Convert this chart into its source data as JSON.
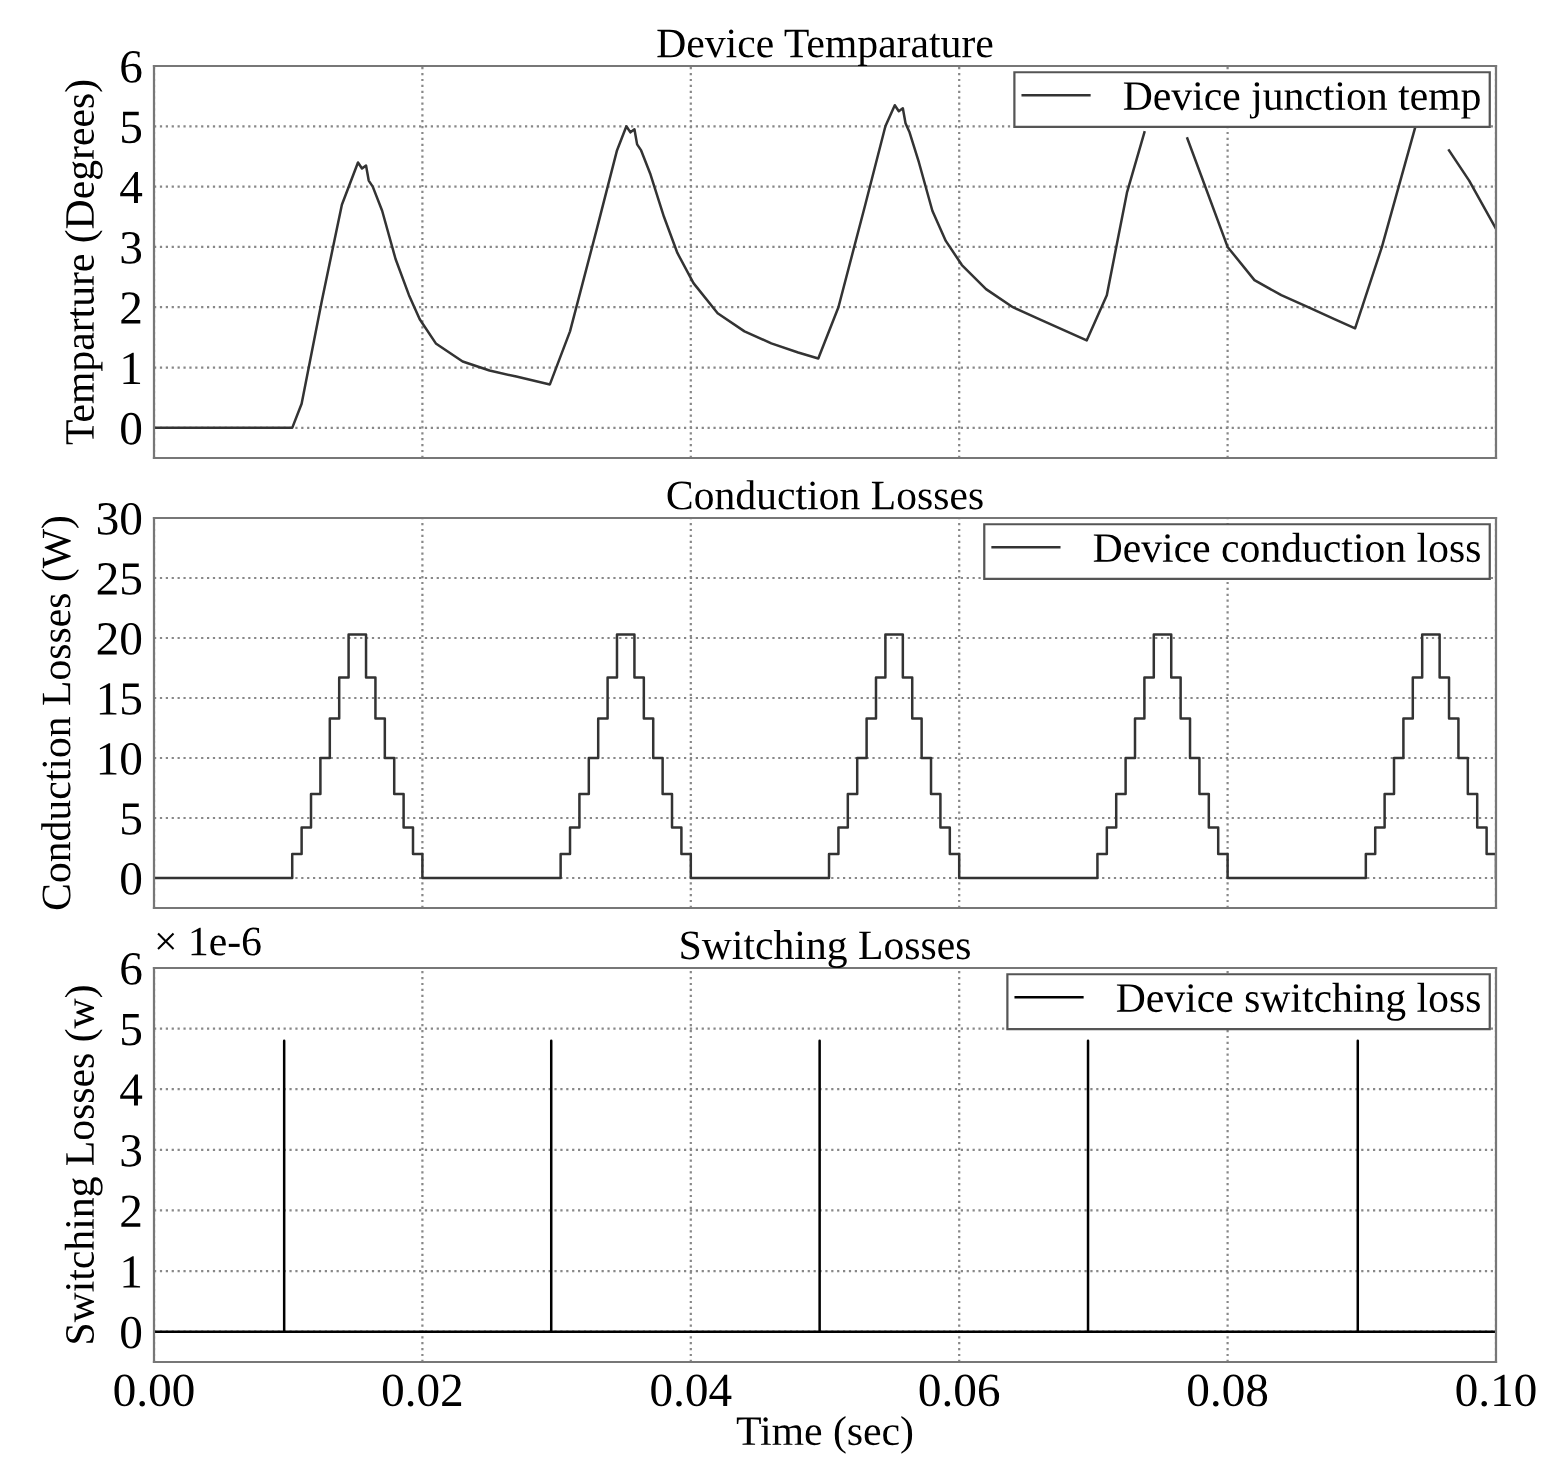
{
  "chart_data": [
    {
      "type": "line",
      "title": "Device Temparature",
      "ylabel": "Temparture (Degrees)",
      "xlim": [
        0,
        0.1
      ],
      "xticks": [
        0,
        0.02,
        0.04,
        0.06,
        0.08,
        0.1
      ],
      "ylim": [
        -0.5,
        6
      ],
      "yticks": [
        0,
        1,
        2,
        3,
        4,
        5,
        6
      ],
      "grid": true,
      "legend": "top right",
      "tick_labels": "y",
      "series": [
        {
          "name": "Device junction temp",
          "color": "#333333",
          "x": [
            0,
            0.0103,
            0.011,
            0.0125,
            0.014,
            0.0152,
            0.0155,
            0.0158,
            0.016,
            0.0163,
            0.017,
            0.018,
            0.019,
            0.0198,
            0.021,
            0.023,
            0.025,
            0.027,
            0.0295,
            0.031,
            0.033,
            0.0345,
            0.0352,
            0.0355,
            0.0358,
            0.036,
            0.0363,
            0.037,
            0.038,
            0.039,
            0.0402,
            0.042,
            0.044,
            0.046,
            0.048,
            0.0495,
            0.051,
            0.053,
            0.0545,
            0.0552,
            0.0555,
            0.0558,
            0.056,
            0.0563,
            0.057,
            0.058,
            0.059,
            0.0602,
            0.062,
            0.064,
            0.066,
            0.068,
            0.0695,
            0.071,
            0.0725,
            0.0738,
            0.075,
            0.077,
            0.078,
            0.08,
            0.082,
            0.084,
            0.086,
            0.088,
            0.0895,
            0.0915,
            0.094,
            0.095,
            0.0965,
            0.098,
            0.1
          ],
          "values": [
            0,
            0,
            0.4,
            2.1,
            3.7,
            4.4,
            4.3,
            4.35,
            4.1,
            4.0,
            3.6,
            2.8,
            2.2,
            1.8,
            1.4,
            1.1,
            0.95,
            0.85,
            0.72,
            1.6,
            3.3,
            4.6,
            5.0,
            4.9,
            4.95,
            4.7,
            4.6,
            4.2,
            3.5,
            2.9,
            2.4,
            1.9,
            1.6,
            1.4,
            1.25,
            1.15,
            2.0,
            3.7,
            5.0,
            5.35,
            5.25,
            5.3,
            5.05,
            4.9,
            4.4,
            3.6,
            3.1,
            2.7,
            2.3,
            2.0,
            1.8,
            1.6,
            1.45,
            2.2,
            3.9,
            4.9,
            null,
            4.8,
            4.2,
            3.0,
            2.45,
            2.2,
            2.0,
            1.8,
            1.65,
            3.0,
            5.0,
            null,
            4.6,
            4.1,
            3.3
          ]
        }
      ]
    },
    {
      "type": "line",
      "title": "Conduction Losses",
      "ylabel": "Conduction Losses (W)",
      "xlim": [
        0,
        0.1
      ],
      "xticks": [
        0,
        0.02,
        0.04,
        0.06,
        0.08,
        0.1
      ],
      "ylim": [
        -2.5,
        30
      ],
      "yticks": [
        0,
        5,
        10,
        15,
        20,
        25,
        30
      ],
      "grid": true,
      "legend": "top right",
      "tick_labels": "y",
      "series": [
        {
          "name": "Device conduction loss",
          "type": "step",
          "color": "#333333",
          "x": [
            0,
            0.0103,
            0.011,
            0.0117,
            0.0124,
            0.0131,
            0.0138,
            0.0145,
            0.0158,
            0.0165,
            0.0172,
            0.0179,
            0.0186,
            0.0193,
            0.02,
            0.0303,
            0.031,
            0.0317,
            0.0324,
            0.0331,
            0.0338,
            0.0345,
            0.0358,
            0.0365,
            0.0372,
            0.0379,
            0.0386,
            0.0393,
            0.04,
            0.0503,
            0.051,
            0.0517,
            0.0524,
            0.0531,
            0.0538,
            0.0545,
            0.0558,
            0.0565,
            0.0572,
            0.0579,
            0.0586,
            0.0593,
            0.06,
            0.0703,
            0.071,
            0.0717,
            0.0724,
            0.0731,
            0.0738,
            0.0745,
            0.0758,
            0.0765,
            0.0772,
            0.0779,
            0.0786,
            0.0793,
            0.08,
            0.0903,
            0.091,
            0.0917,
            0.0924,
            0.0931,
            0.0938,
            0.0945,
            0.0958,
            0.0965,
            0.0972,
            0.0979,
            0.0986,
            0.0993,
            0.1
          ],
          "values": [
            0,
            2,
            4.2,
            7,
            10,
            13.3,
            16.7,
            20.3,
            16.7,
            13.3,
            10,
            7,
            4.2,
            2,
            0,
            2,
            4.2,
            7,
            10,
            13.3,
            16.7,
            20.3,
            16.7,
            13.3,
            10,
            7,
            4.2,
            2,
            0,
            2,
            4.2,
            7,
            10,
            13.3,
            16.7,
            20.3,
            16.7,
            13.3,
            10,
            7,
            4.2,
            2,
            0,
            2,
            4.2,
            7,
            10,
            13.3,
            16.7,
            20.3,
            16.7,
            13.3,
            10,
            7,
            4.2,
            2,
            0,
            2,
            4.2,
            7,
            10,
            13.3,
            16.7,
            20.3,
            16.7,
            13.3,
            10,
            7,
            4.2,
            2,
            0
          ]
        }
      ]
    },
    {
      "type": "line",
      "title": "Switching Losses",
      "ylabel": "Switching Losses (w)",
      "xlabel": "Time (sec)",
      "annotations": [
        "× 1e-6"
      ],
      "xlim": [
        0,
        0.1
      ],
      "xticks": [
        {
          "value": 0,
          "label": "0.00"
        },
        {
          "value": 0.02,
          "label": "0.02"
        },
        {
          "value": 0.04,
          "label": "0.04"
        },
        {
          "value": 0.06,
          "label": "0.06"
        },
        {
          "value": 0.08,
          "label": "0.08"
        },
        {
          "value": 0.1,
          "label": "0.10"
        }
      ],
      "ylim": [
        -0.5,
        6
      ],
      "yticks": [
        0,
        1,
        2,
        3,
        4,
        5,
        6
      ],
      "grid": true,
      "legend": "top right",
      "series": [
        {
          "name": "Device switching loss",
          "color": "#000000",
          "x": [
            0,
            0.0097,
            0.0097,
            0.0097,
            0.0296,
            0.0296,
            0.0296,
            0.0496,
            0.0496,
            0.0496,
            0.0696,
            0.0696,
            0.0696,
            0.0897,
            0.0897,
            0.0897,
            0.1
          ],
          "values": [
            0,
            0,
            4.8,
            0,
            0,
            4.8,
            0,
            0,
            4.8,
            0,
            0,
            4.8,
            0,
            0,
            4.8,
            0,
            0
          ]
        }
      ]
    }
  ]
}
